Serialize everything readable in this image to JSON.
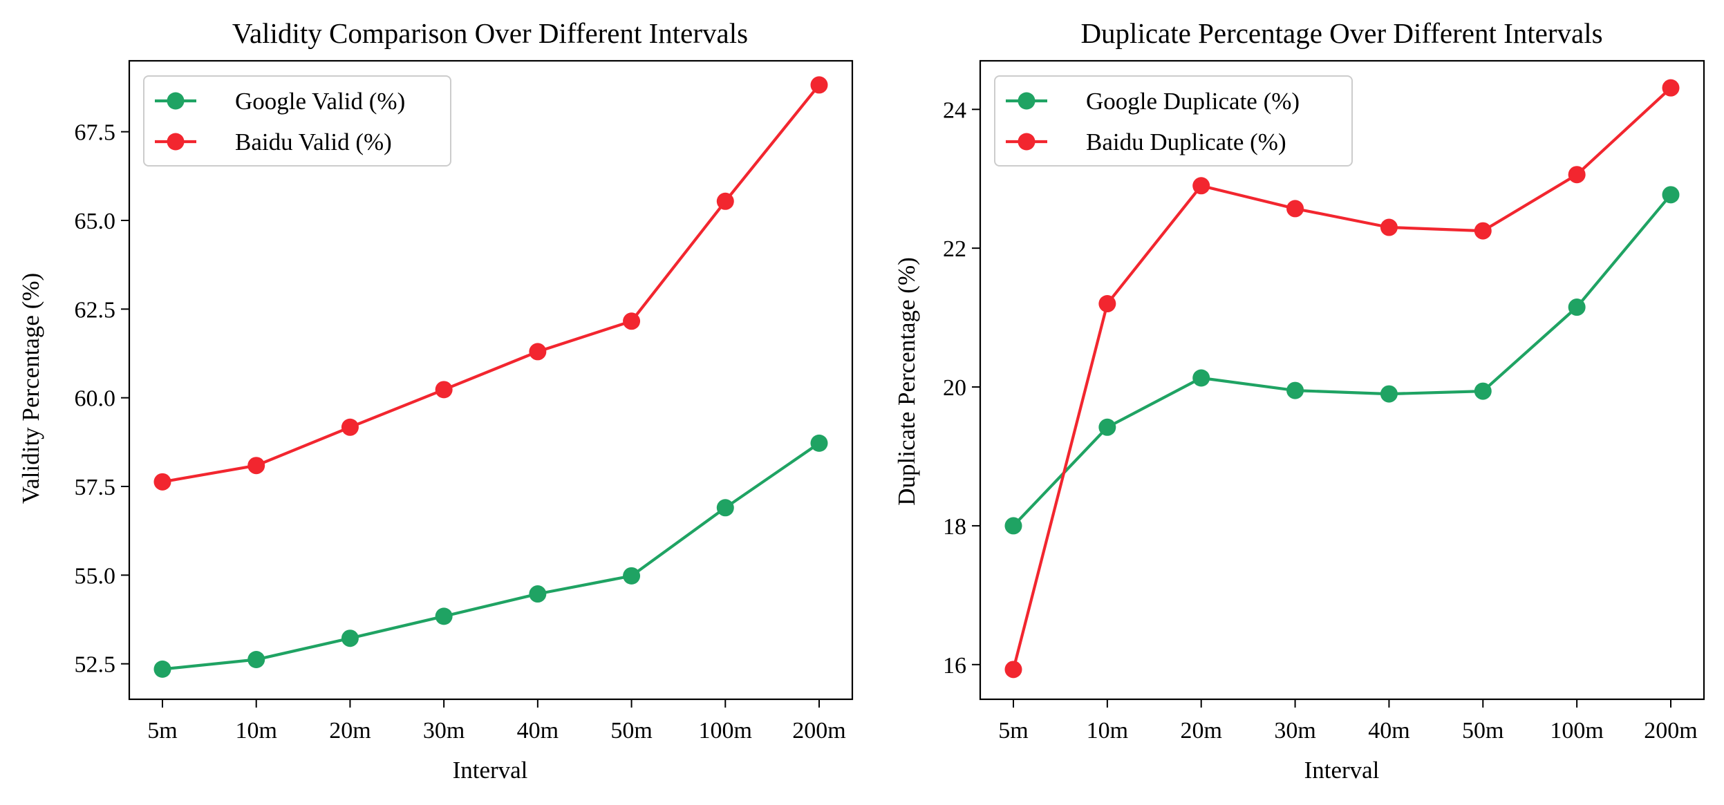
{
  "chart_data": [
    {
      "type": "line",
      "title": "Validity Comparison Over Different Intervals",
      "xlabel": "Interval",
      "ylabel": "Validity Percentage (%)",
      "categories": [
        "5m",
        "10m",
        "20m",
        "30m",
        "40m",
        "50m",
        "100m",
        "200m"
      ],
      "ylim": [
        51.5,
        69.5
      ],
      "yticks": [
        "52.5",
        "55.0",
        "57.5",
        "60.0",
        "62.5",
        "65.0",
        "67.5"
      ],
      "legend_position": "upper-left",
      "grid": false,
      "series": [
        {
          "name": "Google Valid (%)",
          "color": "#1fa363",
          "values": [
            52.35,
            52.62,
            53.22,
            53.84,
            54.47,
            54.98,
            56.9,
            58.72
          ]
        },
        {
          "name": "Baidu Valid (%)",
          "color": "#f2262f",
          "values": [
            57.63,
            58.09,
            59.17,
            60.23,
            61.3,
            62.16,
            65.54,
            68.82
          ]
        }
      ]
    },
    {
      "type": "line",
      "title": "Duplicate Percentage Over Different Intervals",
      "xlabel": "Interval",
      "ylabel": "Duplicate Percentage (%)",
      "categories": [
        "5m",
        "10m",
        "20m",
        "30m",
        "40m",
        "50m",
        "100m",
        "200m"
      ],
      "ylim": [
        15.5,
        24.7
      ],
      "yticks": [
        "16",
        "18",
        "20",
        "22",
        "24"
      ],
      "legend_position": "upper-left",
      "grid": false,
      "series": [
        {
          "name": "Google Duplicate (%)",
          "color": "#1fa363",
          "values": [
            18.0,
            19.42,
            20.13,
            19.95,
            19.9,
            19.94,
            21.15,
            22.77
          ]
        },
        {
          "name": "Baidu Duplicate (%)",
          "color": "#f2262f",
          "values": [
            15.93,
            21.2,
            22.9,
            22.57,
            22.3,
            22.25,
            23.06,
            24.31
          ]
        }
      ]
    }
  ]
}
